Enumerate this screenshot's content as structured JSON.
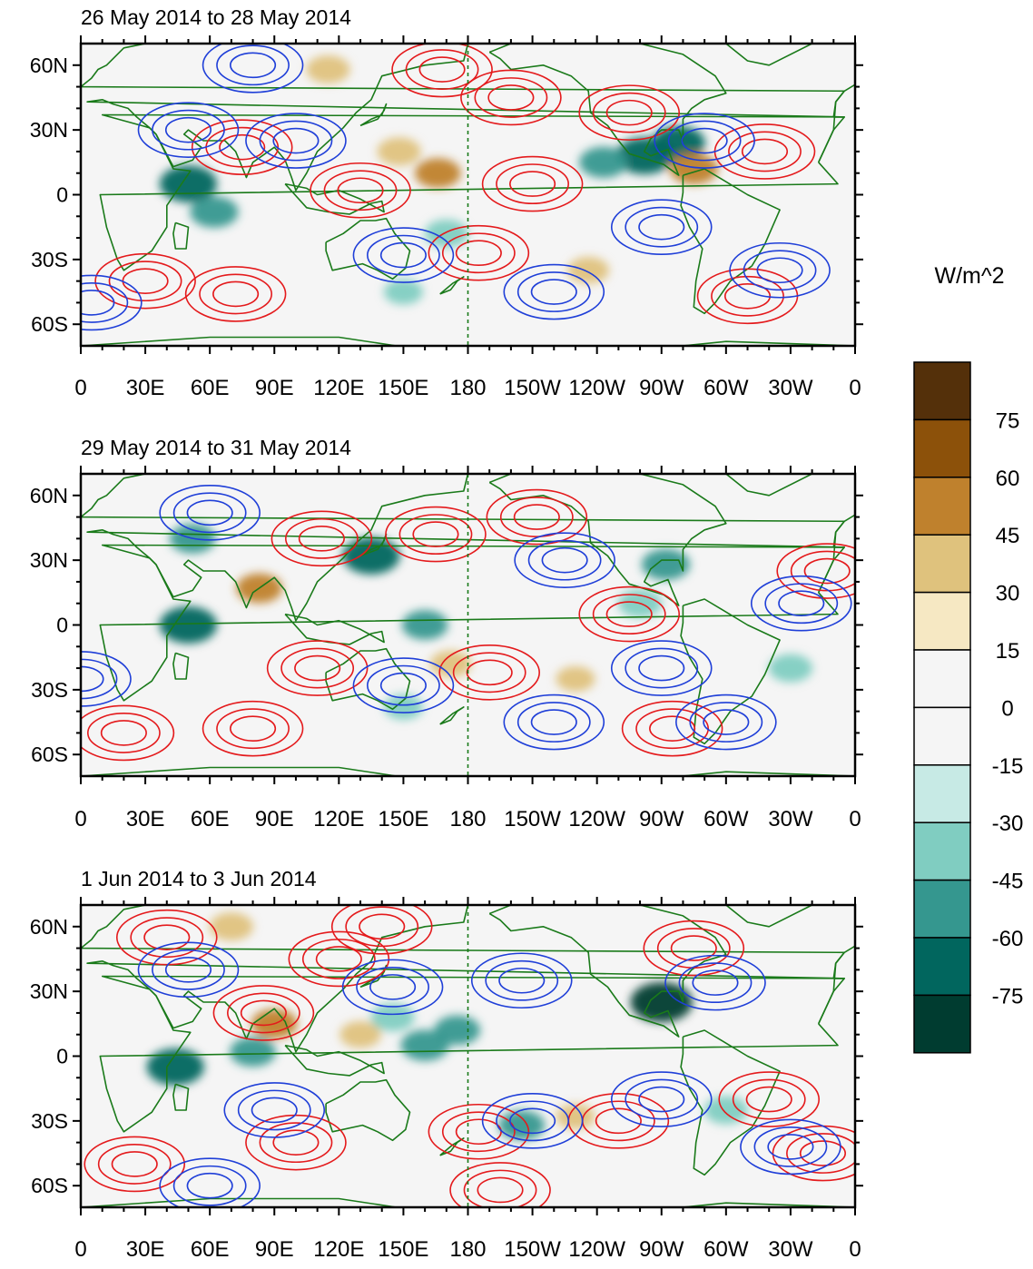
{
  "chart_data": [
    {
      "type": "heatmap",
      "title": "26 May 2014 to 28 May 2014",
      "xlabel": "",
      "ylabel": "",
      "x_ticks": [
        "0",
        "30E",
        "60E",
        "90E",
        "120E",
        "150E",
        "180",
        "150W",
        "120W",
        "90W",
        "60W",
        "30W",
        "0"
      ],
      "y_ticks": [
        "60N",
        "30N",
        "0",
        "30S",
        "60S"
      ],
      "x_range_deg_east": [
        0,
        360
      ],
      "y_range_deg": [
        -70,
        70
      ],
      "dateline_reference": "180",
      "fill_anomalies": [
        {
          "lon": 50,
          "lat": 5,
          "value": -70
        },
        {
          "lon": 62,
          "lat": -8,
          "value": -50
        },
        {
          "lon": 262,
          "lat": 18,
          "value": -70
        },
        {
          "lon": 278,
          "lat": 24,
          "value": -60
        },
        {
          "lon": 243,
          "lat": 15,
          "value": -50
        },
        {
          "lon": 148,
          "lat": 20,
          "value": 40
        },
        {
          "lon": 166,
          "lat": 10,
          "value": 45
        },
        {
          "lon": 285,
          "lat": 12,
          "value": 50
        },
        {
          "lon": 115,
          "lat": 58,
          "value": 40
        },
        {
          "lon": 170,
          "lat": -18,
          "value": -40
        },
        {
          "lon": 236,
          "lat": -35,
          "value": 35
        },
        {
          "lon": 150,
          "lat": -45,
          "value": -30
        }
      ],
      "contours_positive": [
        {
          "lon": 72,
          "lat": -46
        },
        {
          "lon": 168,
          "lat": 58
        },
        {
          "lon": 200,
          "lat": 45
        },
        {
          "lon": 210,
          "lat": 5
        },
        {
          "lon": 130,
          "lat": 2
        },
        {
          "lon": 75,
          "lat": 22
        },
        {
          "lon": 255,
          "lat": 38
        },
        {
          "lon": 318,
          "lat": 20
        },
        {
          "lon": 185,
          "lat": -27
        },
        {
          "lon": 310,
          "lat": -47
        },
        {
          "lon": 30,
          "lat": -40
        }
      ],
      "contours_negative": [
        {
          "lon": 80,
          "lat": 60
        },
        {
          "lon": 100,
          "lat": 25
        },
        {
          "lon": 150,
          "lat": -28
        },
        {
          "lon": 220,
          "lat": -45
        },
        {
          "lon": 270,
          "lat": -15
        },
        {
          "lon": 290,
          "lat": 25
        },
        {
          "lon": 5,
          "lat": -50
        },
        {
          "lon": 325,
          "lat": -35
        },
        {
          "lon": 50,
          "lat": 30
        }
      ]
    },
    {
      "type": "heatmap",
      "title": "29 May 2014 to 31 May 2014",
      "xlabel": "",
      "ylabel": "",
      "x_ticks": [
        "0",
        "30E",
        "60E",
        "90E",
        "120E",
        "150E",
        "180",
        "150W",
        "120W",
        "90W",
        "60W",
        "30W",
        "0"
      ],
      "y_ticks": [
        "60N",
        "30N",
        "0",
        "30S",
        "60S"
      ],
      "x_range_deg_east": [
        0,
        360
      ],
      "y_range_deg": [
        -70,
        70
      ],
      "dateline_reference": "180",
      "fill_anomalies": [
        {
          "lon": 50,
          "lat": 0,
          "value": -70
        },
        {
          "lon": 135,
          "lat": 32,
          "value": -70
        },
        {
          "lon": 52,
          "lat": 40,
          "value": -45
        },
        {
          "lon": 272,
          "lat": 28,
          "value": -50
        },
        {
          "lon": 260,
          "lat": 10,
          "value": -40
        },
        {
          "lon": 83,
          "lat": 17,
          "value": 45
        },
        {
          "lon": 160,
          "lat": 0,
          "value": -45
        },
        {
          "lon": 172,
          "lat": -18,
          "value": 35
        },
        {
          "lon": 330,
          "lat": -20,
          "value": -40
        },
        {
          "lon": 230,
          "lat": -25,
          "value": 30
        },
        {
          "lon": 150,
          "lat": -38,
          "value": -30
        }
      ],
      "contours_positive": [
        {
          "lon": 165,
          "lat": 42
        },
        {
          "lon": 112,
          "lat": 40
        },
        {
          "lon": 190,
          "lat": -22
        },
        {
          "lon": 110,
          "lat": -20
        },
        {
          "lon": 275,
          "lat": -48
        },
        {
          "lon": 212,
          "lat": 50
        },
        {
          "lon": 80,
          "lat": -48
        },
        {
          "lon": 20,
          "lat": -50
        },
        {
          "lon": 347,
          "lat": 25
        },
        {
          "lon": 255,
          "lat": 5
        }
      ],
      "contours_negative": [
        {
          "lon": 60,
          "lat": 52
        },
        {
          "lon": 220,
          "lat": -45
        },
        {
          "lon": 150,
          "lat": -28
        },
        {
          "lon": 270,
          "lat": -20
        },
        {
          "lon": 300,
          "lat": -45
        },
        {
          "lon": 225,
          "lat": 30
        },
        {
          "lon": 335,
          "lat": 10
        },
        {
          "lon": 0,
          "lat": -25
        }
      ]
    },
    {
      "type": "heatmap",
      "title": "1 Jun 2014 to 3 Jun 2014",
      "xlabel": "",
      "ylabel": "",
      "x_ticks": [
        "0",
        "30E",
        "60E",
        "90E",
        "120E",
        "150E",
        "180",
        "150W",
        "120W",
        "90W",
        "60W",
        "30W",
        "0"
      ],
      "y_ticks": [
        "60N",
        "30N",
        "0",
        "30S",
        "60S"
      ],
      "x_range_deg_east": [
        0,
        360
      ],
      "y_range_deg": [
        -70,
        70
      ],
      "dateline_reference": "180",
      "fill_anomalies": [
        {
          "lon": 270,
          "lat": 25,
          "value": -80
        },
        {
          "lon": 44,
          "lat": -5,
          "value": -70
        },
        {
          "lon": 160,
          "lat": 5,
          "value": -50
        },
        {
          "lon": 175,
          "lat": 12,
          "value": -45
        },
        {
          "lon": 90,
          "lat": 15,
          "value": 45
        },
        {
          "lon": 70,
          "lat": 60,
          "value": 40
        },
        {
          "lon": 130,
          "lat": 10,
          "value": 35
        },
        {
          "lon": 230,
          "lat": -28,
          "value": 30
        },
        {
          "lon": 205,
          "lat": -32,
          "value": -45
        },
        {
          "lon": 80,
          "lat": 2,
          "value": -45
        },
        {
          "lon": 145,
          "lat": 18,
          "value": -40
        },
        {
          "lon": 300,
          "lat": -25,
          "value": -40
        }
      ],
      "contours_positive": [
        {
          "lon": 40,
          "lat": 55
        },
        {
          "lon": 140,
          "lat": 60
        },
        {
          "lon": 85,
          "lat": 20
        },
        {
          "lon": 120,
          "lat": 45
        },
        {
          "lon": 25,
          "lat": -50
        },
        {
          "lon": 100,
          "lat": -40
        },
        {
          "lon": 185,
          "lat": -35
        },
        {
          "lon": 250,
          "lat": -30
        },
        {
          "lon": 320,
          "lat": -20
        },
        {
          "lon": 285,
          "lat": 50
        },
        {
          "lon": 345,
          "lat": -45
        },
        {
          "lon": 195,
          "lat": -62
        }
      ],
      "contours_negative": [
        {
          "lon": 50,
          "lat": 40
        },
        {
          "lon": 145,
          "lat": 32
        },
        {
          "lon": 205,
          "lat": 35
        },
        {
          "lon": 295,
          "lat": 34
        },
        {
          "lon": 270,
          "lat": -20
        },
        {
          "lon": 90,
          "lat": -25
        },
        {
          "lon": 330,
          "lat": -42
        },
        {
          "lon": 60,
          "lat": -60
        },
        {
          "lon": 210,
          "lat": -30
        }
      ]
    }
  ],
  "colorbar": {
    "units": "W/m^2",
    "levels": [
      "75",
      "60",
      "45",
      "30",
      "15",
      "0",
      "-15",
      "-30",
      "-45",
      "-60",
      "-75"
    ],
    "colors": [
      "#54300a",
      "#8c510a",
      "#bf812d",
      "#dfc27d",
      "#f6e8c3",
      "#f5f5f5",
      "#f5f5f5",
      "#c7eae5",
      "#80cdc1",
      "#35978f",
      "#01665e",
      "#003c30"
    ]
  },
  "colors": {
    "positive_contour": "#e41a1c",
    "negative_contour": "#1f3fd8",
    "coastline": "#1a7a1a",
    "dateline": "#1a7a1a",
    "bold_contour": "#000000",
    "map_background": "#f5f5f5"
  }
}
